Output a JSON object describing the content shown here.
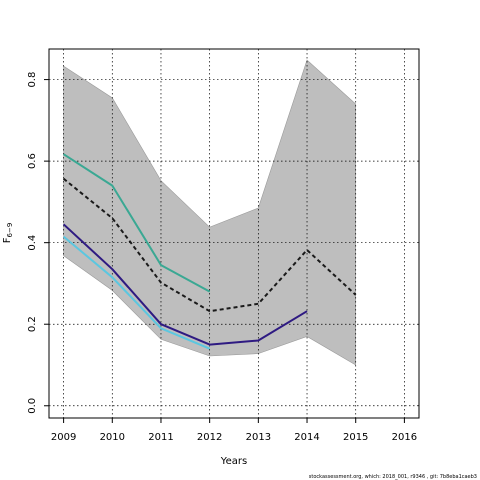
{
  "chart_data": {
    "type": "line",
    "xlabel": "Years",
    "ylabel": "F",
    "ylabel_sub": "6−9",
    "xlim": [
      2008.7,
      2016.3
    ],
    "ylim": [
      -0.03,
      0.875
    ],
    "x_ticks": [
      2009,
      2010,
      2011,
      2012,
      2013,
      2014,
      2015,
      2016
    ],
    "y_ticks": [
      0.0,
      0.2,
      0.4,
      0.6,
      0.8
    ],
    "y_tick_labels": [
      "0.0",
      "0.2",
      "0.4",
      "0.6",
      "0.8"
    ],
    "grid": true,
    "band": {
      "color": "#bebebe",
      "x": [
        2009,
        2010,
        2011,
        2012,
        2013,
        2014,
        2015
      ],
      "upper": [
        0.833,
        0.755,
        0.552,
        0.438,
        0.485,
        0.848,
        0.74
      ],
      "lower": [
        0.368,
        0.283,
        0.163,
        0.122,
        0.128,
        0.17,
        0.1
      ]
    },
    "series": [
      {
        "color": "#5bc7e0",
        "style": "solid",
        "x": [
          2009,
          2010,
          2011,
          2012
        ],
        "values": [
          0.415,
          0.315,
          0.19,
          0.14
        ]
      },
      {
        "color": "#3aa893",
        "style": "solid",
        "x": [
          2009,
          2010,
          2011,
          2012
        ],
        "values": [
          0.617,
          0.54,
          0.345,
          0.28
        ]
      },
      {
        "color": "#2e1a82",
        "style": "solid",
        "x": [
          2009,
          2010,
          2011,
          2012,
          2013,
          2014
        ],
        "values": [
          0.445,
          0.335,
          0.2,
          0.15,
          0.16,
          0.232
        ]
      },
      {
        "color": "#1a1a1a",
        "style": "dashed",
        "x": [
          2009,
          2010,
          2011,
          2012,
          2013,
          2014,
          2015
        ],
        "values": [
          0.557,
          0.46,
          0.302,
          0.232,
          0.25,
          0.382,
          0.272
        ]
      }
    ]
  },
  "footer": "stockassessment.org, which: 2018_001, r9346 , git: 7b8eba1caeb3"
}
